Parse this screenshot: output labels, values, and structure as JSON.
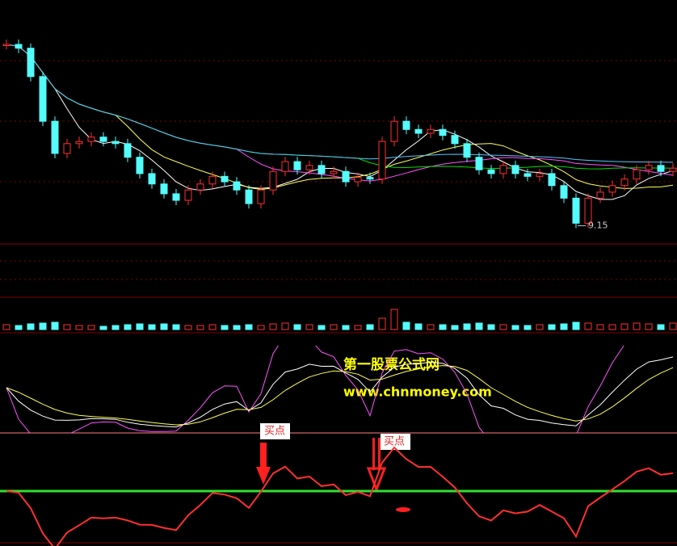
{
  "price": {
    "closes": [
      12.43,
      12.36,
      11.84,
      11.02,
      10.43,
      10.61,
      10.65,
      10.73,
      10.65,
      10.61,
      10.36,
      10.06,
      9.87,
      9.69,
      9.57,
      9.76,
      9.87,
      10.01,
      9.91,
      9.76,
      9.51,
      9.76,
      10.1,
      10.28,
      10.13,
      10.21,
      10.06,
      10.1,
      9.91,
      9.99,
      9.96,
      10.65,
      11.02,
      10.87,
      10.8,
      10.87,
      10.76,
      10.61,
      10.36,
      10.13,
      10.06,
      10.21,
      10.06,
      10.01,
      10.06,
      9.84,
      9.61,
      9.15,
      9.61,
      9.72,
      9.84,
      9.96,
      10.13,
      10.21,
      10.1,
      10.16
    ],
    "ylim": [
      8.8,
      12.8
    ],
    "up_color": "#ff3030",
    "down_color": "#54fcfc",
    "ma": [
      {
        "period": 5,
        "color": "#ffffff"
      },
      {
        "period": 10,
        "color": "#ffff54"
      },
      {
        "period": 20,
        "color": "#ff54ff"
      },
      {
        "period": 30,
        "color": "#00e000"
      },
      {
        "period": 60,
        "color": "#54c8ff"
      }
    ]
  },
  "volume": {
    "values": [
      6,
      5,
      7,
      8,
      9,
      6,
      5,
      5,
      4,
      5,
      6,
      7,
      6,
      7,
      6,
      5,
      5,
      6,
      5,
      5,
      6,
      5,
      7,
      8,
      6,
      6,
      5,
      6,
      5,
      5,
      6,
      14,
      25,
      9,
      7,
      6,
      6,
      5,
      7,
      8,
      6,
      6,
      5,
      5,
      6,
      6,
      7,
      9,
      8,
      6,
      6,
      7,
      8,
      7,
      6,
      8
    ],
    "ylim": [
      0,
      30
    ]
  },
  "kdj": {
    "ylim": [
      0,
      100
    ],
    "period": 9,
    "colors": {
      "k": "#ffffff",
      "d": "#ffff54",
      "j": "#ff54ff"
    }
  },
  "watermark": {
    "title": "第一股票公式网",
    "url": "www.chnmoney.com"
  },
  "signals": [
    {
      "label": "买点"
    },
    {
      "label": "买点"
    }
  ]
}
